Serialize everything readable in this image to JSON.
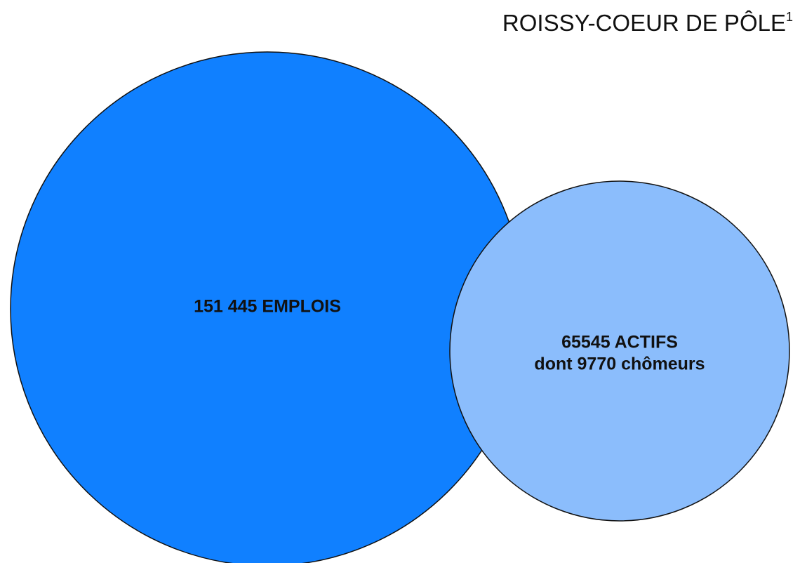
{
  "title": {
    "text": "ROISSY-COEUR DE PÔLE",
    "superscript": "1"
  },
  "nodes": [
    {
      "label": "151 445 EMPLOIS"
    },
    {
      "label": "65545 ACTIFS",
      "sublabel": "dont 9770 chômeurs"
    }
  ]
}
